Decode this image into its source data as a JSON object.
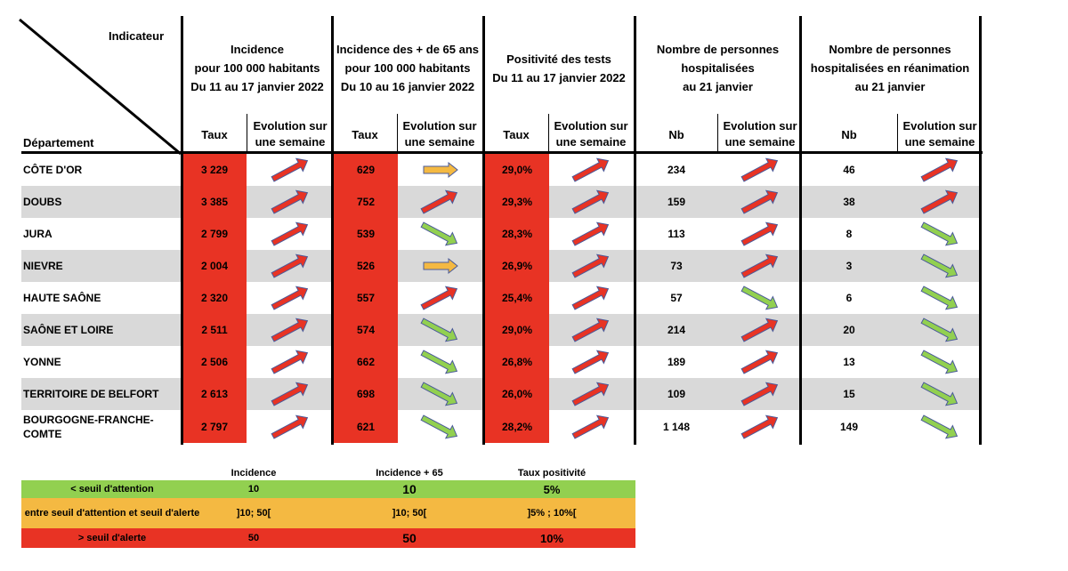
{
  "header": {
    "indicateur": "Indicateur",
    "departement": "Département",
    "groups": [
      {
        "lines": [
          "Incidence",
          "pour 100 000 habitants",
          "Du 11 au 17 janvier 2022"
        ]
      },
      {
        "lines": [
          "Incidence des + de 65 ans",
          "pour 100 000 habitants",
          "Du 10 au 16 janvier 2022"
        ]
      },
      {
        "lines": [
          "Positivité des tests",
          "Du 11 au 17 janvier 2022"
        ]
      },
      {
        "lines": [
          "Nombre de personnes",
          "hospitalisées",
          "au 21 janvier"
        ]
      },
      {
        "lines": [
          "Nombre de personnes",
          "hospitalisées en réanimation",
          "au 21 janvier"
        ]
      }
    ],
    "sub": {
      "taux": "Taux",
      "nb": "Nb",
      "evolution_l1": "Evolution sur",
      "evolution_l2": "une semaine"
    }
  },
  "rows": [
    {
      "dep": "CÔTE D'OR",
      "inc": "3 229",
      "inc_ev": "up",
      "inc65": "629",
      "inc65_ev": "flat",
      "pos": "29,0%",
      "pos_ev": "up",
      "hosp": "234",
      "hosp_ev": "up",
      "rea": "46",
      "rea_ev": "up"
    },
    {
      "dep": "DOUBS",
      "inc": "3 385",
      "inc_ev": "up",
      "inc65": "752",
      "inc65_ev": "up",
      "pos": "29,3%",
      "pos_ev": "up",
      "hosp": "159",
      "hosp_ev": "up",
      "rea": "38",
      "rea_ev": "up"
    },
    {
      "dep": "JURA",
      "inc": "2 799",
      "inc_ev": "up",
      "inc65": "539",
      "inc65_ev": "down",
      "pos": "28,3%",
      "pos_ev": "up",
      "hosp": "113",
      "hosp_ev": "up",
      "rea": "8",
      "rea_ev": "down"
    },
    {
      "dep": "NIEVRE",
      "inc": "2 004",
      "inc_ev": "up",
      "inc65": "526",
      "inc65_ev": "flat",
      "pos": "26,9%",
      "pos_ev": "up",
      "hosp": "73",
      "hosp_ev": "up",
      "rea": "3",
      "rea_ev": "down"
    },
    {
      "dep": "HAUTE SAÔNE",
      "inc": "2 320",
      "inc_ev": "up",
      "inc65": "557",
      "inc65_ev": "up",
      "pos": "25,4%",
      "pos_ev": "up",
      "hosp": "57",
      "hosp_ev": "down",
      "rea": "6",
      "rea_ev": "down"
    },
    {
      "dep": "SAÔNE ET LOIRE",
      "inc": "2 511",
      "inc_ev": "up",
      "inc65": "574",
      "inc65_ev": "down",
      "pos": "29,0%",
      "pos_ev": "up",
      "hosp": "214",
      "hosp_ev": "up",
      "rea": "20",
      "rea_ev": "down"
    },
    {
      "dep": "YONNE",
      "inc": "2 506",
      "inc_ev": "up",
      "inc65": "662",
      "inc65_ev": "down",
      "pos": "26,8%",
      "pos_ev": "up",
      "hosp": "189",
      "hosp_ev": "up",
      "rea": "13",
      "rea_ev": "down"
    },
    {
      "dep": "TERRITOIRE DE BELFORT",
      "inc": "2 613",
      "inc_ev": "up",
      "inc65": "698",
      "inc65_ev": "down",
      "pos": "26,0%",
      "pos_ev": "up",
      "hosp": "109",
      "hosp_ev": "up",
      "rea": "15",
      "rea_ev": "down"
    },
    {
      "dep": "BOURGOGNE-FRANCHE-COMTE",
      "inc": "2 797",
      "inc_ev": "up",
      "inc65": "621",
      "inc65_ev": "down",
      "pos": "28,2%",
      "pos_ev": "up",
      "hosp": "1 148",
      "hosp_ev": "up",
      "rea": "149",
      "rea_ev": "down"
    }
  ],
  "legend": {
    "headers": [
      "Incidence",
      "Incidence + 65",
      "Taux positivité"
    ],
    "rows": [
      {
        "label": "< seuil d'attention",
        "inc": "10",
        "inc65": "10",
        "pos": "5%",
        "color": "#92d050"
      },
      {
        "label": "entre seuil d'attention et seuil d'alerte",
        "inc": "]10; 50[",
        "inc65": "]10; 50[",
        "pos": "]5% ; 10%[",
        "color": "#f4b942"
      },
      {
        "label": "> seuil d'alerte",
        "inc": "50",
        "inc65": "50",
        "pos": "10%",
        "color": "#e83324"
      }
    ]
  },
  "colors": {
    "red": "#e83324",
    "green": "#92d050",
    "orange": "#f4b942",
    "grey": "#d9d9d9",
    "arrow_outline": "#4a5a9a"
  }
}
